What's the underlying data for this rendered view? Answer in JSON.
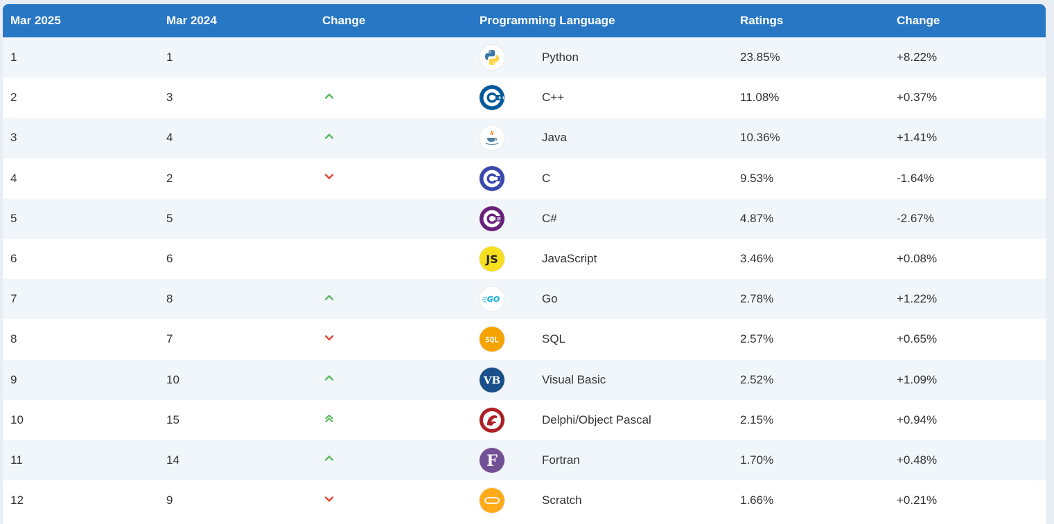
{
  "table": {
    "headers": [
      "Mar 2025",
      "Mar 2024",
      "Change",
      "Programming Language",
      "Ratings",
      "Change"
    ],
    "rows": [
      {
        "rank_2025": "1",
        "rank_2024": "1",
        "trend": "none",
        "language": "Python",
        "icon": "python-logo-icon",
        "rating": "23.85%",
        "change": "+8.22%"
      },
      {
        "rank_2025": "2",
        "rank_2024": "3",
        "trend": "up",
        "language": "C++",
        "icon": "cpp-logo-icon",
        "rating": "11.08%",
        "change": "+0.37%"
      },
      {
        "rank_2025": "3",
        "rank_2024": "4",
        "trend": "up",
        "language": "Java",
        "icon": "java-logo-icon",
        "rating": "10.36%",
        "change": "+1.41%"
      },
      {
        "rank_2025": "4",
        "rank_2024": "2",
        "trend": "down",
        "language": "C",
        "icon": "c-logo-icon",
        "rating": "9.53%",
        "change": "-1.64%"
      },
      {
        "rank_2025": "5",
        "rank_2024": "5",
        "trend": "none",
        "language": "C#",
        "icon": "csharp-logo-icon",
        "rating": "4.87%",
        "change": "-2.67%"
      },
      {
        "rank_2025": "6",
        "rank_2024": "6",
        "trend": "none",
        "language": "JavaScript",
        "icon": "javascript-logo-icon",
        "rating": "3.46%",
        "change": "+0.08%"
      },
      {
        "rank_2025": "7",
        "rank_2024": "8",
        "trend": "up",
        "language": "Go",
        "icon": "go-logo-icon",
        "rating": "2.78%",
        "change": "+1.22%"
      },
      {
        "rank_2025": "8",
        "rank_2024": "7",
        "trend": "down",
        "language": "SQL",
        "icon": "sql-logo-icon",
        "rating": "2.57%",
        "change": "+0.65%"
      },
      {
        "rank_2025": "9",
        "rank_2024": "10",
        "trend": "up",
        "language": "Visual Basic",
        "icon": "visual-basic-logo-icon",
        "rating": "2.52%",
        "change": "+1.09%"
      },
      {
        "rank_2025": "10",
        "rank_2024": "15",
        "trend": "double-up",
        "language": "Delphi/Object Pascal",
        "icon": "delphi-logo-icon",
        "rating": "2.15%",
        "change": "+0.94%"
      },
      {
        "rank_2025": "11",
        "rank_2024": "14",
        "trend": "up",
        "language": "Fortran",
        "icon": "fortran-logo-icon",
        "rating": "1.70%",
        "change": "+0.48%"
      },
      {
        "rank_2025": "12",
        "rank_2024": "9",
        "trend": "down",
        "language": "Scratch",
        "icon": "scratch-logo-icon",
        "rating": "1.66%",
        "change": "+0.21%"
      }
    ]
  },
  "logo_text": {
    "javascript": "JS",
    "sql": "SQL",
    "visual_basic": "VB",
    "fortran": "F",
    "go": "GO"
  },
  "colors": {
    "header_bg": "#2877c5",
    "row_alt_bg": "#f1f6fb",
    "trend_up": "#5cb85c",
    "trend_down": "#e8432d"
  }
}
